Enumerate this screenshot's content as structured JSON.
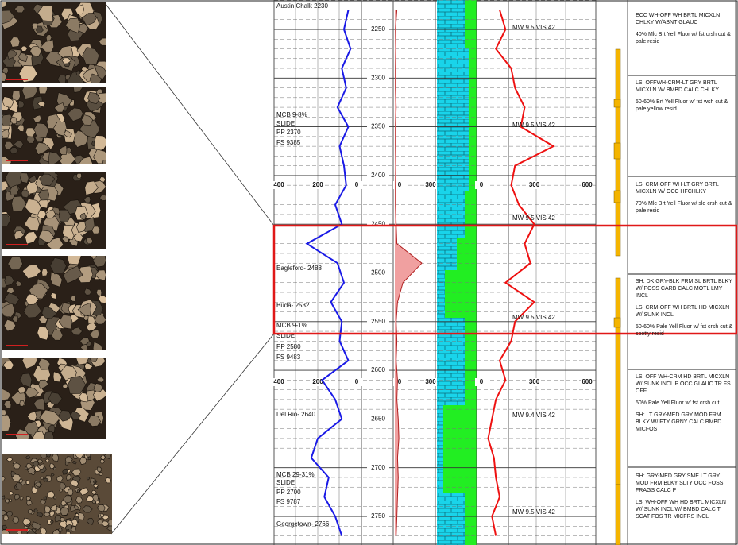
{
  "depth_labels": [
    2250,
    2300,
    2350,
    2400,
    2450,
    2500,
    2550,
    2600,
    2650,
    2700,
    2750
  ],
  "scales": {
    "left": [
      400,
      200,
      0
    ],
    "middle": [
      0,
      300
    ],
    "right": [
      0,
      300,
      600
    ]
  },
  "formation_notes": [
    "Austin Chalk 2230",
    "MCB 9-8%",
    "SLIDE",
    "PP 2370",
    "FS 9385",
    "Eagleford- 2488",
    "Buda- 2532",
    "MCB 9-1%",
    "SLIDE",
    "PP 2580",
    "FS 9483",
    "Del Rio- 2640",
    "MCB 29-31%",
    "SLIDE",
    "PP 2700",
    "FS 9787",
    "Georgetown- 2766"
  ],
  "mud_notes": [
    "MW 9.5 VIS 42",
    "MW 9.5 VIS 42",
    "MW 9.5 VIS 42",
    "MW 9.5 VIS 42",
    "MW 9.4 VIS 42",
    "MW 9.5 VIS 42"
  ],
  "descriptions": [
    [
      "ECC WH-OFF WH BRTL MICXLN CHLKY W/ABNT GLAUC",
      "40% Mlc Brt Yell Fluor w/ fst crsh cut & pale resid"
    ],
    [
      "LS: OFFWH-CRM-LT GRY BRTL MICXLN W/ BMBD CALC CHLKY",
      "50-60% Brt Yell Fluor w/ fst wsh cut & pale yellow resid"
    ],
    [
      "LS: CRM-OFF WH-LT GRY BRTL MICXLN W/ OCC HFCHLKY",
      "70% Mlc Brt Yell Fluor w/ slo crsh cut & pale resid"
    ],
    [
      "SH: DK GRY-BLK FRM SL BRTL BLKY W/ POSS CARB CALC MOTL LMY INCL",
      "LS: CRM-OFF WH BRTL HD MICXLN W/ SUNK INCL",
      "50-60% Pale Yell Fluor w/ fst crsh cut & spotty resid"
    ],
    [
      "LS: OFF WH-CRM HD BRTL MICXLN W/ SUNK INCL P OCC GLAUC TR FS OFF",
      "50% Pale Yell Fluor w/ fst crsh cut",
      "SH: LT GRY-MED GRY MOD FRM BLKY W/ FTY GRNY CALC BMBD MICFOS"
    ],
    [
      "SH: GRY-MED GRY SME LT GRY MOD FRM BLKY SLTY OCC FOSS FRAGS CALC P",
      "LS: WH-OFF WH HD BRTL MICXLN W/ SUNK INCL W/ BMBD CALC T SCAT FOS TR MICFRS INCL"
    ]
  ],
  "curves": [
    {
      "track": "left",
      "color": "#1a1ae6",
      "depths": [
        2230,
        2250,
        2270,
        2290,
        2310,
        2330,
        2350,
        2370,
        2390,
        2410,
        2430,
        2450,
        2470,
        2490,
        2510,
        2530,
        2550,
        2570,
        2590,
        2610,
        2630,
        2650,
        2670,
        2690,
        2710,
        2730,
        2750,
        2770
      ],
      "values": [
        60,
        80,
        50,
        90,
        70,
        110,
        60,
        100,
        80,
        70,
        120,
        90,
        250,
        110,
        80,
        140,
        90,
        100,
        60,
        180,
        120,
        90,
        200,
        230,
        150,
        170,
        120,
        90
      ]
    },
    {
      "track": "middle",
      "color": "#b02020",
      "depths": [
        2230,
        2250,
        2270,
        2290,
        2310,
        2330,
        2350,
        2370,
        2390,
        2410,
        2430,
        2450,
        2470,
        2490,
        2510,
        2530,
        2550,
        2570,
        2590,
        2610,
        2630,
        2650,
        2670,
        2690,
        2710,
        2730,
        2750,
        2770
      ],
      "values": [
        15,
        5,
        8,
        5,
        5,
        10,
        5,
        5,
        8,
        5,
        5,
        10,
        15,
        200,
        60,
        20,
        10,
        15,
        10,
        20,
        15,
        25,
        30,
        20,
        25,
        20,
        15,
        10
      ]
    },
    {
      "track": "right",
      "color": "#ee1111",
      "depths": [
        2230,
        2250,
        2270,
        2290,
        2310,
        2330,
        2350,
        2370,
        2390,
        2410,
        2430,
        2450,
        2470,
        2490,
        2510,
        2530,
        2550,
        2570,
        2590,
        2610,
        2630,
        2650,
        2670,
        2690,
        2710,
        2730,
        2750,
        2770
      ],
      "values": [
        120,
        150,
        100,
        180,
        200,
        250,
        230,
        400,
        200,
        180,
        220,
        300,
        250,
        280,
        150,
        300,
        200,
        180,
        120,
        150,
        100,
        80,
        60,
        90,
        100,
        120,
        80,
        100
      ]
    }
  ]
}
